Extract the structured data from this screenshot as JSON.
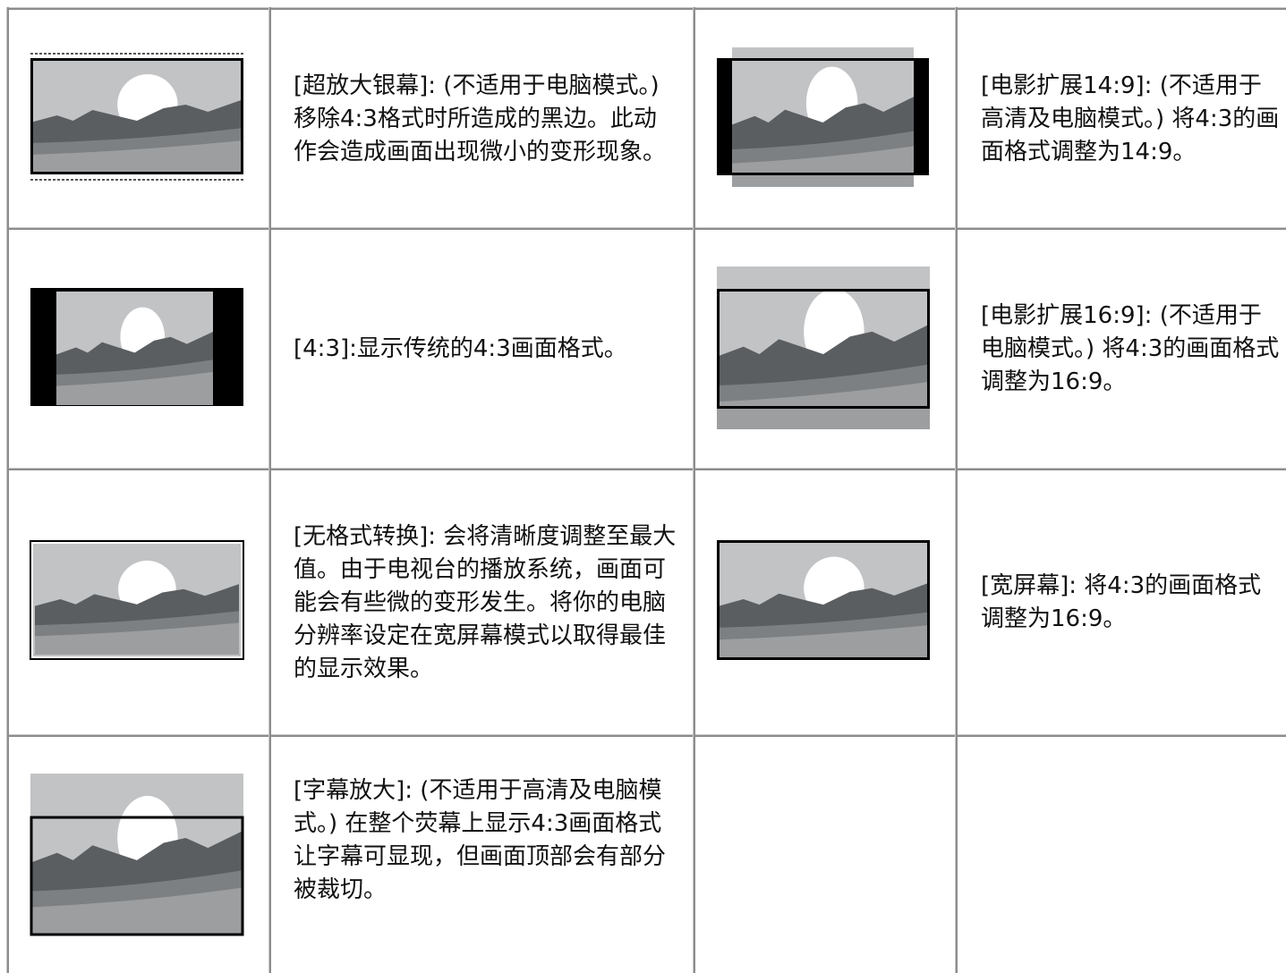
{
  "table": {
    "rows": [
      [
        "[超放大银幕]: (不适用于电脑模式。) 移除4:3格式时所造成的黑边。此动作会造成画面出现微小的变形现象。",
        "[电影扩展14:9]: (不适用于高清及电脑模式。) 将4:3的画面格式调整为14:9。"
      ],
      [
        "[4:3]:显示传统的4:3画面格式。",
        "[电影扩展16:9]: (不适用于电脑模式。) 将4:3的画面格式调整为16:9。"
      ],
      [
        "[无格式转换]: 会将清晰度调整至最大值。由于电视台的播放系统，画面可能会有些微的变形发生。将你的电脑分辨率设定在宽屏幕模式以取得最佳的显示效果。",
        "[宽屏幕]: 将4:3的画面格式调整为16:9。"
      ],
      [
        "[字幕放大]: (不适用于高清及电脑模式。) 在整个荧幕上显示4:3画面格式让字幕可显现，但画面顶部会有部分被裁切。"
      ]
    ]
  }
}
